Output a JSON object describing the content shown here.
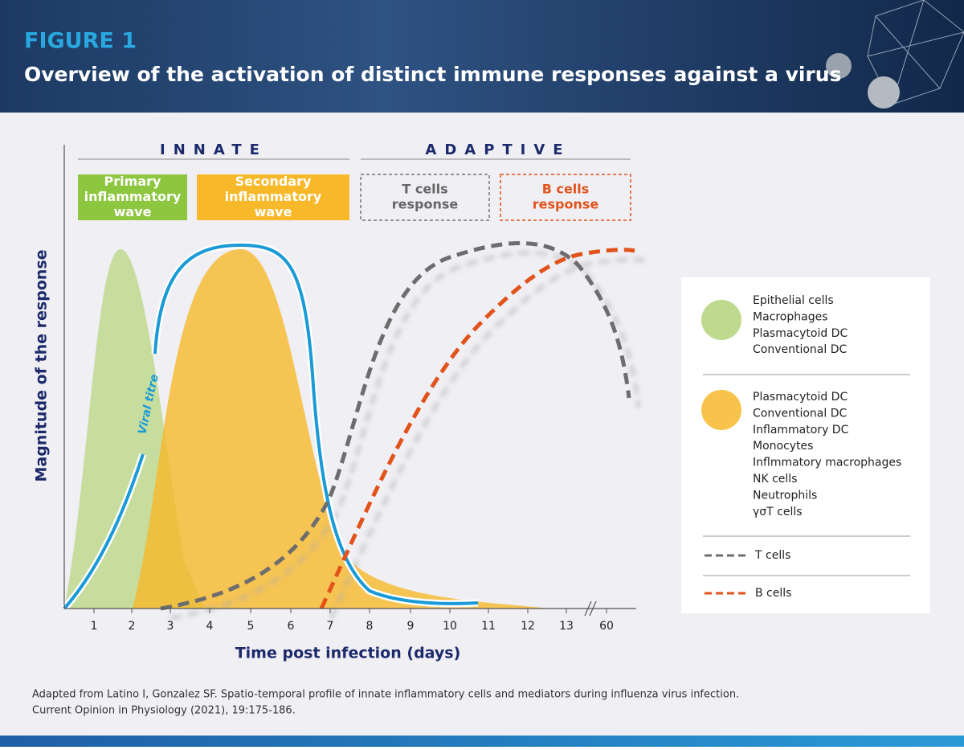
{
  "header": {
    "figure": "FIGURE 1",
    "title": "Overview of the activation of distinct immune responses against a virus"
  },
  "phases": [
    "INNATE",
    "ADAPTIVE"
  ],
  "boxes": [
    {
      "lines": [
        "Primary",
        "inflammatory",
        "wave"
      ]
    },
    {
      "lines": [
        "Secondary",
        "inflammatory",
        "wave"
      ]
    },
    {
      "lines": [
        "T cells",
        "response"
      ]
    },
    {
      "lines": [
        "B cells",
        "response"
      ]
    }
  ],
  "axes": {
    "y_label": "Magnitude of the response",
    "x_label": "Time post infection (days)",
    "x_ticks": [
      "1",
      "2",
      "3",
      "4",
      "5",
      "6",
      "7",
      "8",
      "9",
      "10",
      "11",
      "12",
      "13",
      "60"
    ]
  },
  "curve_label": "Viral titre",
  "legend": {
    "groups": [
      {
        "items": [
          "Epithelial cells",
          "Macrophages",
          "Plasmacytoid DC",
          "Conventional DC"
        ]
      },
      {
        "items": [
          "Plasmacytoid DC",
          "Conventional DC",
          "Inflammatory DC",
          "Monocytes",
          "Inflmmatory macrophages",
          "NK cells",
          "Neutrophils",
          "γσT cells"
        ]
      }
    ],
    "t_cells": "T cells",
    "b_cells": "B cells"
  },
  "source": [
    "Adapted from Latino I,  Gonzalez SF. Spatio-temporal profile of innate inflammatory cells and mediators during influenza virus infection.",
    "Current Opinion in Physiology (2021), 19:175-186."
  ]
}
